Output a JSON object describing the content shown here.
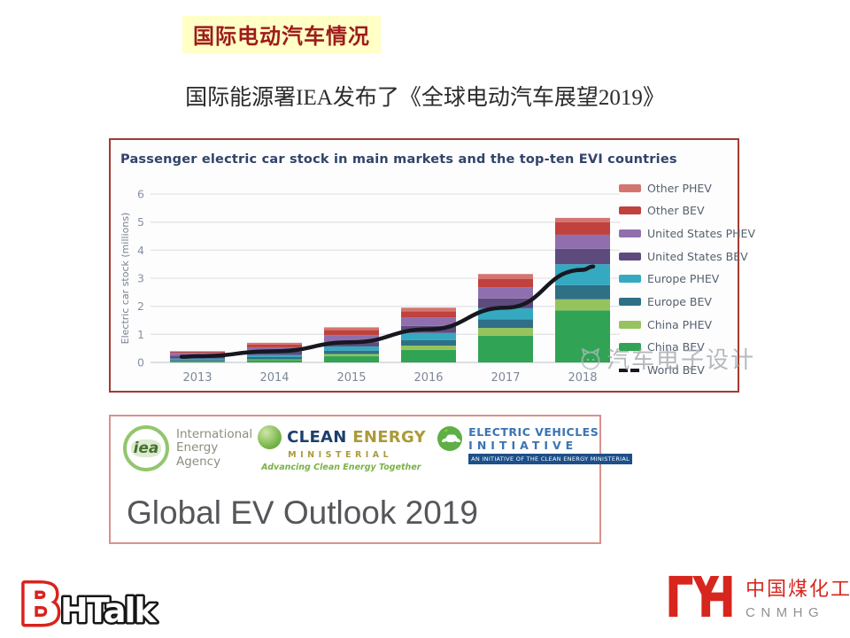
{
  "slide": {
    "badge": "国际电动汽车情况",
    "subtitle": "国际能源署IEA发布了《全球电动汽车展望2019》"
  },
  "chart_data": {
    "type": "bar",
    "stacked": true,
    "title": "Passenger electric car stock in main markets and the top-ten EVI countries",
    "xlabel": "",
    "ylabel": "Electric car stock (millions)",
    "ylim": [
      0,
      6
    ],
    "y_ticks": [
      0,
      1,
      2,
      3,
      4,
      5,
      6
    ],
    "grid": true,
    "legend_position": "right",
    "categories": [
      "2013",
      "2014",
      "2015",
      "2016",
      "2017",
      "2018"
    ],
    "series": [
      {
        "name": "China BEV",
        "color": "#31A354",
        "values": [
          0.03,
          0.08,
          0.22,
          0.45,
          0.95,
          1.85
        ]
      },
      {
        "name": "China PHEV",
        "color": "#96C35D",
        "values": [
          0.01,
          0.03,
          0.08,
          0.15,
          0.28,
          0.4
        ]
      },
      {
        "name": "Europe BEV",
        "color": "#2E7086",
        "values": [
          0.05,
          0.08,
          0.12,
          0.2,
          0.3,
          0.5
        ]
      },
      {
        "name": "Europe PHEV",
        "color": "#35A9C0",
        "values": [
          0.05,
          0.08,
          0.15,
          0.25,
          0.4,
          0.75
        ]
      },
      {
        "name": "United States BEV",
        "color": "#5E4B7E",
        "values": [
          0.1,
          0.12,
          0.15,
          0.25,
          0.35,
          0.55
        ]
      },
      {
        "name": "United States PHEV",
        "color": "#8F6FAD",
        "values": [
          0.1,
          0.15,
          0.25,
          0.3,
          0.4,
          0.5
        ]
      },
      {
        "name": "Other BEV",
        "color": "#C0413D",
        "values": [
          0.04,
          0.1,
          0.18,
          0.22,
          0.3,
          0.45
        ]
      },
      {
        "name": "Other PHEV",
        "color": "#D47570",
        "values": [
          0.02,
          0.06,
          0.1,
          0.13,
          0.17,
          0.15
        ]
      }
    ],
    "line_series": {
      "name": "World BEV",
      "color": "#17171F",
      "style": "dashed",
      "values": [
        0.22,
        0.4,
        0.72,
        1.18,
        1.95,
        3.3
      ]
    },
    "legend_order": [
      "Other PHEV",
      "Other BEV",
      "United States PHEV",
      "United States BEV",
      "Europe PHEV",
      "Europe BEV",
      "China PHEV",
      "China BEV",
      "World BEV"
    ]
  },
  "watermark": {
    "text": "汽车电子设计"
  },
  "cover": {
    "iea": {
      "abbr": "iea",
      "line1": "International",
      "line2": "Energy Agency"
    },
    "cem": {
      "word1": "CLEAN",
      "word2": "ENERGY",
      "ministerial": "MINISTERIAL",
      "tagline": "Advancing Clean Energy Together"
    },
    "evi": {
      "line1": "ELECTRIC VEHICLES",
      "line2": "INITIATIVE",
      "banner": "AN INITIATIVE OF THE CLEAN ENERGY MINISTERIAL"
    },
    "title": "Global EV Outlook 2019"
  },
  "footer": {
    "bhtalk": {
      "b": "B",
      "rest": "HTalk"
    },
    "cnmhg": {
      "cn": "中国煤化工",
      "en": "CNMHG"
    }
  },
  "colors": {
    "badge_bg": "#FFFFC6",
    "badge_text": "#9E1B1B",
    "chart_border": "#A23B31",
    "cover_border": "#D9918C",
    "brand_red": "#D7261E",
    "line_world_bev": "#17171F"
  }
}
